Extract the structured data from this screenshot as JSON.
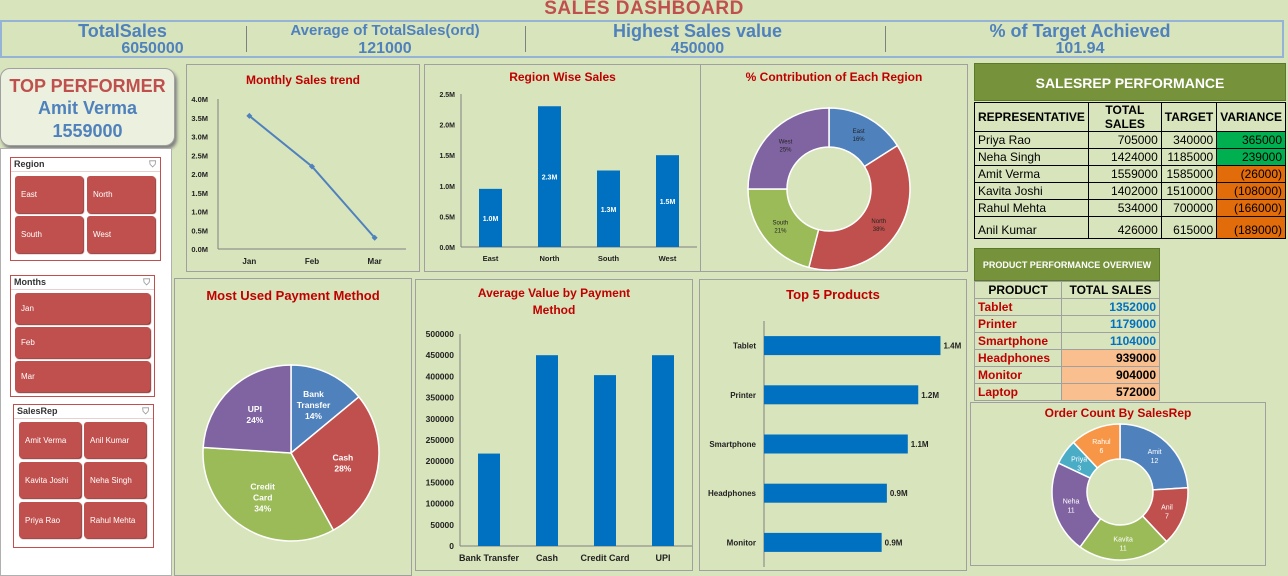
{
  "header": {
    "title": "SALES DASHBOARD"
  },
  "kpis": [
    {
      "label": "TotalSales",
      "value": "6050000"
    },
    {
      "label": "Average of TotalSales(ord)",
      "value": "121000"
    },
    {
      "label": "Highest Sales value",
      "value": "450000"
    },
    {
      "label": "% of Target Achieved",
      "value": "101.94"
    }
  ],
  "top_performer": {
    "heading": "TOP PERFORMER",
    "name": "Amit Verma",
    "value": "1559000"
  },
  "slicers": {
    "region": {
      "title": "Region",
      "items": [
        "East",
        "North",
        "South",
        "West"
      ]
    },
    "months": {
      "title": "Months",
      "items": [
        "Jan",
        "Feb",
        "Mar"
      ]
    },
    "salesrep": {
      "title": "SalesRep",
      "items": [
        "Amit Verma",
        "Anil Kumar",
        "Kavita Joshi",
        "Neha Singh",
        "Priya Rao",
        "Rahul Mehta"
      ]
    }
  },
  "salesrep_table": {
    "title": "SALESREP PERFORMANCE",
    "headers": [
      "REPRESENTATIVE",
      "TOTAL SALES",
      "TARGET",
      "VARIANCE"
    ],
    "rows": [
      {
        "rep": "Priya Rao",
        "sales": "705000",
        "target": "340000",
        "variance": "365000",
        "status": "pos"
      },
      {
        "rep": "Neha Singh",
        "sales": "1424000",
        "target": "1185000",
        "variance": "239000",
        "status": "pos"
      },
      {
        "rep": "Amit Verma",
        "sales": "1559000",
        "target": "1585000",
        "variance": "(26000)",
        "status": "neg"
      },
      {
        "rep": "Kavita Joshi",
        "sales": "1402000",
        "target": "1510000",
        "variance": "(108000)",
        "status": "neg"
      },
      {
        "rep": "Rahul Mehta",
        "sales": "534000",
        "target": "700000",
        "variance": "(166000)",
        "status": "neg"
      },
      {
        "rep": "Anil Kumar",
        "sales": "426000",
        "target": "615000",
        "variance": "(189000)",
        "status": "neg"
      }
    ]
  },
  "product_table": {
    "title": "PRODUCT PERFORMANCE OVERVIEW",
    "headers": [
      "PRODUCT",
      "TOTAL SALES"
    ],
    "rows": [
      {
        "product": "Tablet",
        "sales": "1352000"
      },
      {
        "product": "Printer",
        "sales": "1179000"
      },
      {
        "product": "Smartphone",
        "sales": "1104000"
      },
      {
        "product": "Headphones",
        "sales": "939000"
      },
      {
        "product": "Monitor",
        "sales": "904000"
      },
      {
        "product": "Laptop",
        "sales": "572000"
      }
    ]
  },
  "colors": {
    "blue": "#4f81bd",
    "red": "#c0504d",
    "green": "#9bbb59",
    "purple": "#8064a2",
    "teal": "#4bacc6",
    "orange": "#f79646",
    "bar": "#0070c0",
    "title_red": "#c00000"
  },
  "chart_data": [
    {
      "id": "monthly",
      "type": "line",
      "title": "Monthly Sales trend",
      "categories": [
        "Jan",
        "Feb",
        "Mar"
      ],
      "values": [
        3.55,
        2.2,
        0.3
      ],
      "ylim": [
        0,
        4
      ],
      "yticks": [
        "0.0M",
        "0.5M",
        "1.0M",
        "1.5M",
        "2.0M",
        "2.5M",
        "3.0M",
        "3.5M",
        "4.0M"
      ]
    },
    {
      "id": "region",
      "type": "bar",
      "title": "Region Wise Sales",
      "categories": [
        "East",
        "North",
        "South",
        "West"
      ],
      "values": [
        0.95,
        2.3,
        1.25,
        1.5
      ],
      "labels": [
        "1.0M",
        "2.3M",
        "1.3M",
        "1.5M"
      ],
      "ylim": [
        0,
        2.5
      ],
      "yticks": [
        "0.0M",
        "0.5M",
        "1.0M",
        "1.5M",
        "2.0M",
        "2.5M"
      ]
    },
    {
      "id": "contrib",
      "type": "pie",
      "title": "% Contribution of Each Region",
      "slices": [
        {
          "name": "East",
          "value": 16,
          "label": "16%"
        },
        {
          "name": "North",
          "value": 38,
          "label": "38%"
        },
        {
          "name": "South",
          "value": 21,
          "label": "21%"
        },
        {
          "name": "West",
          "value": 25,
          "label": "25%"
        }
      ]
    },
    {
      "id": "payment",
      "type": "pie",
      "title": "Most Used Payment Method",
      "slices": [
        {
          "name": "Bank Transfer",
          "value": 14,
          "label": "14%"
        },
        {
          "name": "Cash",
          "value": 28,
          "label": "28%"
        },
        {
          "name": "Credit Card",
          "value": 34,
          "label": "34%"
        },
        {
          "name": "UPI",
          "value": 24,
          "label": "24%"
        }
      ]
    },
    {
      "id": "avgpay",
      "type": "bar",
      "title": "Average Value by Payment Method",
      "categories": [
        "Bank Transfer",
        "Cash",
        "Credit Card",
        "UPI"
      ],
      "values": [
        218000,
        450000,
        403000,
        450000
      ],
      "ylim": [
        0,
        500000
      ],
      "yticks": [
        "0",
        "50000",
        "100000",
        "150000",
        "200000",
        "250000",
        "300000",
        "350000",
        "400000",
        "450000",
        "500000"
      ]
    },
    {
      "id": "top5",
      "type": "bar",
      "title": "Top 5 Products",
      "categories": [
        "Tablet",
        "Printer",
        "Smartphone",
        "Headphones",
        "Monitor"
      ],
      "values": [
        1.35,
        1.18,
        1.1,
        0.94,
        0.9
      ],
      "labels": [
        "1.4M",
        "1.2M",
        "1.1M",
        "0.9M",
        "0.9M"
      ],
      "xlim": [
        0,
        1.4
      ]
    },
    {
      "id": "orders",
      "type": "pie",
      "title": "Order Count By SalesRep",
      "slices": [
        {
          "name": "Amit",
          "value": 12,
          "label": "12"
        },
        {
          "name": "Anil",
          "value": 7,
          "label": "7"
        },
        {
          "name": "Kavita",
          "value": 11,
          "label": "11"
        },
        {
          "name": "Neha",
          "value": 11,
          "label": "11"
        },
        {
          "name": "Priya",
          "value": 3,
          "label": "3"
        },
        {
          "name": "Rahul",
          "value": 6,
          "label": "6"
        }
      ]
    }
  ]
}
